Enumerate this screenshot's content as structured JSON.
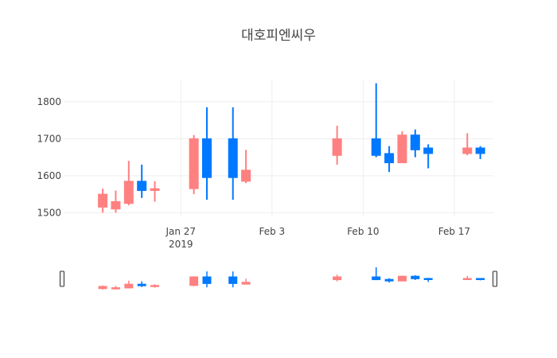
{
  "chart_data": {
    "type": "candlestick",
    "title": "대호피엔씨우",
    "increasing_color": "#0078ff",
    "decreasing_color": "#ff8080",
    "ylim": [
      1490,
      1860
    ],
    "xlim": [
      "2019-01-18",
      "2019-02-20"
    ],
    "y_ticks": [
      1500,
      1600,
      1700,
      1800
    ],
    "x_ticks": [
      {
        "date": "2019-01-27",
        "label": "Jan 27",
        "sublabel": "2019"
      },
      {
        "date": "2019-02-03",
        "label": "Feb 3",
        "sublabel": ""
      },
      {
        "date": "2019-02-10",
        "label": "Feb 10",
        "sublabel": ""
      },
      {
        "date": "2019-02-17",
        "label": "Feb 17",
        "sublabel": ""
      }
    ],
    "grid": true,
    "rangeslider": true,
    "candles": [
      {
        "date": "2019-01-21",
        "open": 1550,
        "high": 1565,
        "low": 1500,
        "close": 1515
      },
      {
        "date": "2019-01-22",
        "open": 1530,
        "high": 1560,
        "low": 1500,
        "close": 1510
      },
      {
        "date": "2019-01-23",
        "open": 1585,
        "high": 1640,
        "low": 1520,
        "close": 1525
      },
      {
        "date": "2019-01-24",
        "open": 1560,
        "high": 1630,
        "low": 1540,
        "close": 1585
      },
      {
        "date": "2019-01-25",
        "open": 1565,
        "high": 1585,
        "low": 1530,
        "close": 1560
      },
      {
        "date": "2019-01-28",
        "open": 1700,
        "high": 1710,
        "low": 1550,
        "close": 1565
      },
      {
        "date": "2019-01-29",
        "open": 1595,
        "high": 1785,
        "low": 1535,
        "close": 1700
      },
      {
        "date": "2019-01-31",
        "open": 1595,
        "high": 1785,
        "low": 1535,
        "close": 1700
      },
      {
        "date": "2019-02-01",
        "open": 1615,
        "high": 1670,
        "low": 1580,
        "close": 1585
      },
      {
        "date": "2019-02-08",
        "open": 1700,
        "high": 1735,
        "low": 1630,
        "close": 1655
      },
      {
        "date": "2019-02-11",
        "open": 1655,
        "high": 1850,
        "low": 1650,
        "close": 1700
      },
      {
        "date": "2019-02-12",
        "open": 1635,
        "high": 1680,
        "low": 1610,
        "close": 1660
      },
      {
        "date": "2019-02-13",
        "open": 1710,
        "high": 1720,
        "low": 1635,
        "close": 1635
      },
      {
        "date": "2019-02-14",
        "open": 1670,
        "high": 1725,
        "low": 1650,
        "close": 1710
      },
      {
        "date": "2019-02-15",
        "open": 1660,
        "high": 1685,
        "low": 1620,
        "close": 1675
      },
      {
        "date": "2019-02-18",
        "open": 1675,
        "high": 1715,
        "low": 1655,
        "close": 1660
      },
      {
        "date": "2019-02-19",
        "open": 1660,
        "high": 1680,
        "low": 1645,
        "close": 1675
      }
    ]
  }
}
